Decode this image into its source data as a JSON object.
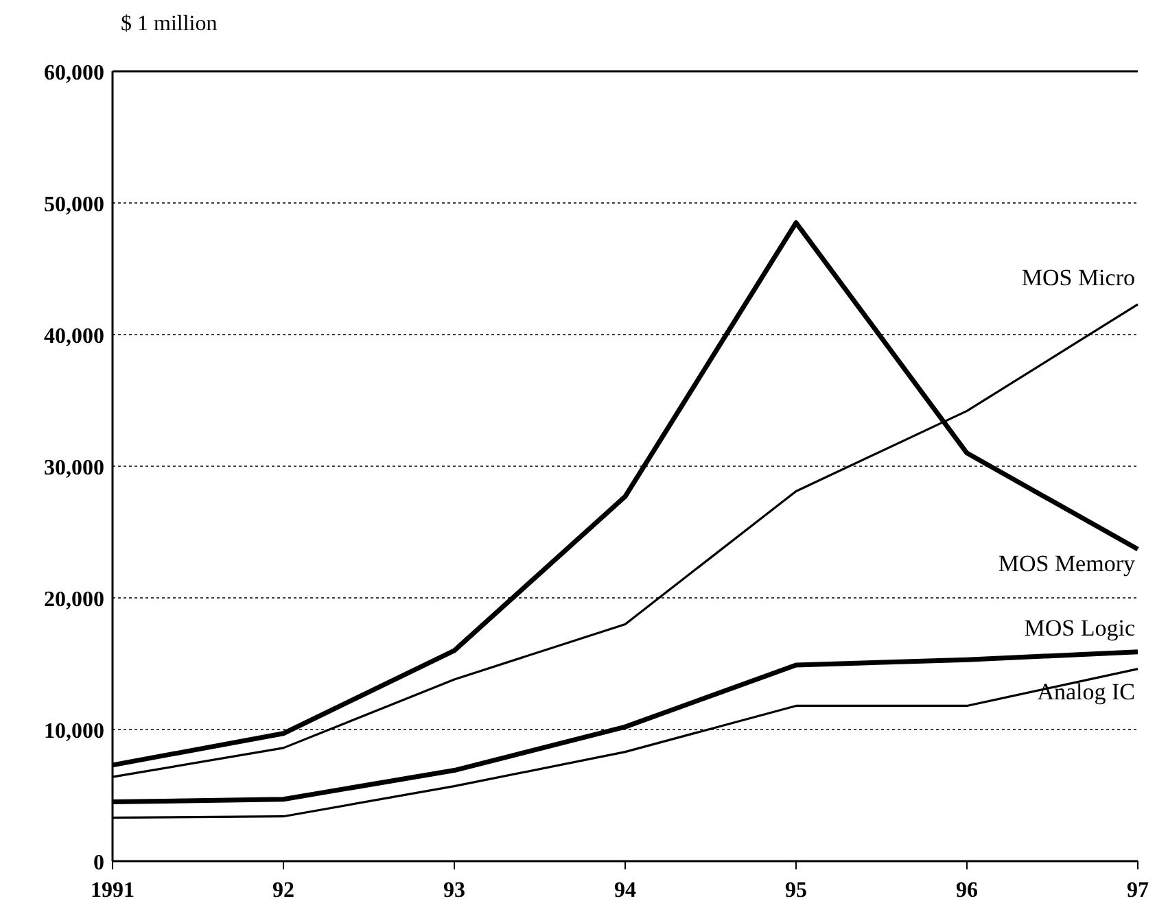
{
  "chart_data": {
    "type": "line",
    "ylabel": "$ 1 million",
    "x": [
      1991,
      1992,
      1993,
      1994,
      1995,
      1996,
      1997
    ],
    "xlim": [
      1991,
      1997
    ],
    "xticks": [
      1991,
      {
        "value": 1992,
        "label": "92"
      },
      {
        "value": 1993,
        "label": "93"
      },
      {
        "value": 1994,
        "label": "94"
      },
      {
        "value": 1995,
        "label": "95"
      },
      {
        "value": 1996,
        "label": "96"
      },
      {
        "value": 1997,
        "label": "97"
      }
    ],
    "ylim": [
      0,
      60000
    ],
    "yticks": [
      0,
      {
        "value": 10000,
        "label": "10,000"
      },
      {
        "value": 20000,
        "label": "20,000"
      },
      {
        "value": 30000,
        "label": "30,000"
      },
      {
        "value": 40000,
        "label": "40,000"
      },
      {
        "value": 50000,
        "label": "50,000"
      },
      {
        "value": 60000,
        "label": "60,000"
      }
    ],
    "grid": "y",
    "legend": false,
    "marker": "none",
    "line_style": "solid",
    "series": [
      {
        "name": "MOS Memory",
        "color": "#000000",
        "values": [
          7300,
          9700,
          16000,
          27700,
          48500,
          31000,
          23700
        ]
      },
      {
        "name": "MOS Micro",
        "color": "#000000",
        "values": [
          6400,
          8600,
          13800,
          18000,
          28100,
          34200,
          42300
        ]
      },
      {
        "name": "MOS Logic",
        "color": "#000000",
        "values": [
          4500,
          4700,
          6900,
          10200,
          14900,
          15300,
          15900
        ]
      },
      {
        "name": "Analog IC",
        "color": "#000000",
        "values": [
          3300,
          3400,
          5700,
          8300,
          11800,
          11800,
          14600
        ]
      }
    ]
  }
}
